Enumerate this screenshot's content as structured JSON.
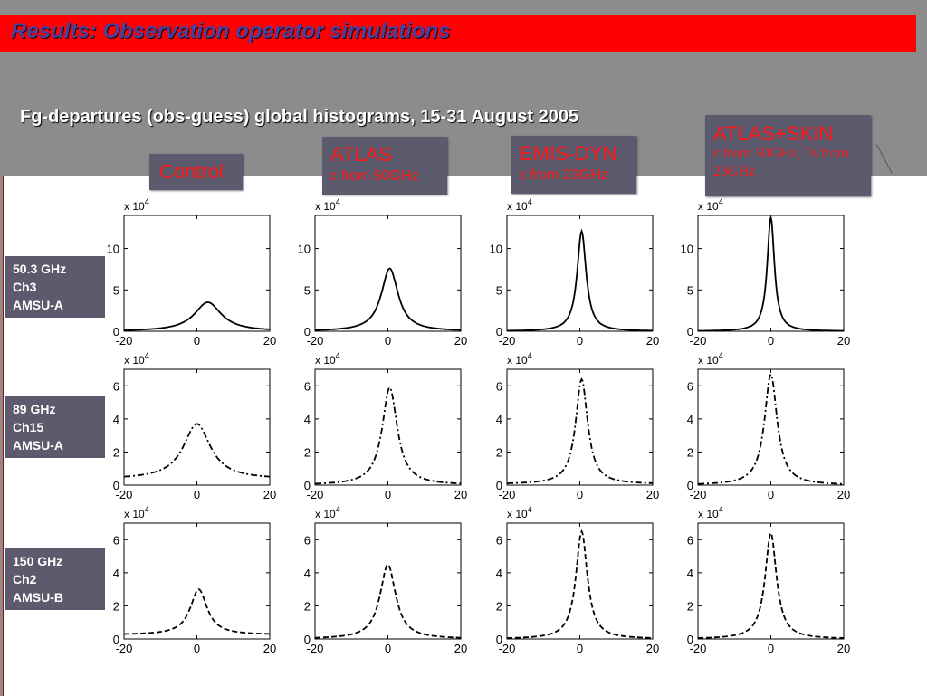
{
  "slide": {
    "title": "Results: Observation operator simulations",
    "subtitle": "Fg-departures (obs-guess) global histograms, 15-31 August 2005"
  },
  "columns": [
    {
      "main": "Control",
      "sub": ""
    },
    {
      "main": "ATLAS",
      "sub": "ε from 50GHz"
    },
    {
      "main": "EMIS-DYN",
      "sub": "ε from 23GHz"
    },
    {
      "main": "ATLAS+SKIN",
      "sub": "ε from 50GHz, Ts from 23GHz"
    }
  ],
  "rows": [
    {
      "lines": [
        "50.3 GHz",
        "Ch3",
        "AMSU-A"
      ]
    },
    {
      "lines": [
        "89 GHz",
        "Ch15",
        "AMSU-A"
      ]
    },
    {
      "lines": [
        "150 GHz",
        "Ch2",
        "AMSU-B"
      ]
    }
  ],
  "colors": {
    "title_bar": "#ff0000",
    "label_box": "#5b5b6d",
    "label_text": "#ff1515"
  },
  "chart_data": {
    "type": "line",
    "multiplier_label": "x 10",
    "multiplier_exp": "4",
    "xlim": [
      -20,
      20
    ],
    "xticks": [
      -20,
      0,
      20
    ],
    "panels": [
      {
        "row": 0,
        "col": 0,
        "style": "solid",
        "ylim": [
          0,
          14
        ],
        "yticks": [
          0,
          5,
          10
        ],
        "peak_x": 3,
        "peak_y": 3.5,
        "width": 4.5,
        "base": 0
      },
      {
        "row": 0,
        "col": 1,
        "style": "solid",
        "ylim": [
          0,
          14
        ],
        "yticks": [
          0,
          5,
          10
        ],
        "peak_x": 0.5,
        "peak_y": 7.6,
        "width": 2.8,
        "base": 0
      },
      {
        "row": 0,
        "col": 2,
        "style": "solid",
        "ylim": [
          0,
          14
        ],
        "yticks": [
          0,
          5,
          10
        ],
        "peak_x": 0.5,
        "peak_y": 12.1,
        "width": 1.5,
        "base": 0
      },
      {
        "row": 0,
        "col": 3,
        "style": "solid",
        "ylim": [
          0,
          14
        ],
        "yticks": [
          0,
          5,
          10
        ],
        "peak_x": 0,
        "peak_y": 13.8,
        "width": 1.2,
        "base": 0
      },
      {
        "row": 1,
        "col": 0,
        "style": "dashdot",
        "ylim": [
          0,
          7
        ],
        "yticks": [
          0,
          2,
          4,
          6
        ],
        "peak_x": 0,
        "peak_y": 3.7,
        "width": 4.5,
        "base": 0.35
      },
      {
        "row": 1,
        "col": 1,
        "style": "dashdot",
        "ylim": [
          0,
          7
        ],
        "yticks": [
          0,
          2,
          4,
          6
        ],
        "peak_x": 0.5,
        "peak_y": 5.9,
        "width": 2.5,
        "base": 0
      },
      {
        "row": 1,
        "col": 2,
        "style": "dashdot",
        "ylim": [
          0,
          7
        ],
        "yticks": [
          0,
          2,
          4,
          6
        ],
        "peak_x": 0.5,
        "peak_y": 6.4,
        "width": 2.0,
        "base": 0.05
      },
      {
        "row": 1,
        "col": 3,
        "style": "dashdot",
        "ylim": [
          0,
          7
        ],
        "yticks": [
          0,
          2,
          4,
          6
        ],
        "peak_x": 0,
        "peak_y": 6.7,
        "width": 2.1,
        "base": 0
      },
      {
        "row": 2,
        "col": 0,
        "style": "dashed",
        "ylim": [
          0,
          7
        ],
        "yticks": [
          0,
          2,
          4,
          6
        ],
        "peak_x": 0.5,
        "peak_y": 3.0,
        "width": 2.8,
        "base": 0.25
      },
      {
        "row": 2,
        "col": 1,
        "style": "dashed",
        "ylim": [
          0,
          7
        ],
        "yticks": [
          0,
          2,
          4,
          6
        ],
        "peak_x": 0,
        "peak_y": 4.5,
        "width": 2.6,
        "base": 0
      },
      {
        "row": 2,
        "col": 2,
        "style": "dashed",
        "ylim": [
          0,
          7
        ],
        "yticks": [
          0,
          2,
          4,
          6
        ],
        "peak_x": 0.5,
        "peak_y": 6.5,
        "width": 1.9,
        "base": 0
      },
      {
        "row": 2,
        "col": 3,
        "style": "dashed",
        "ylim": [
          0,
          7
        ],
        "yticks": [
          0,
          2,
          4,
          6
        ],
        "peak_x": 0,
        "peak_y": 6.4,
        "width": 1.9,
        "base": 0
      }
    ]
  }
}
